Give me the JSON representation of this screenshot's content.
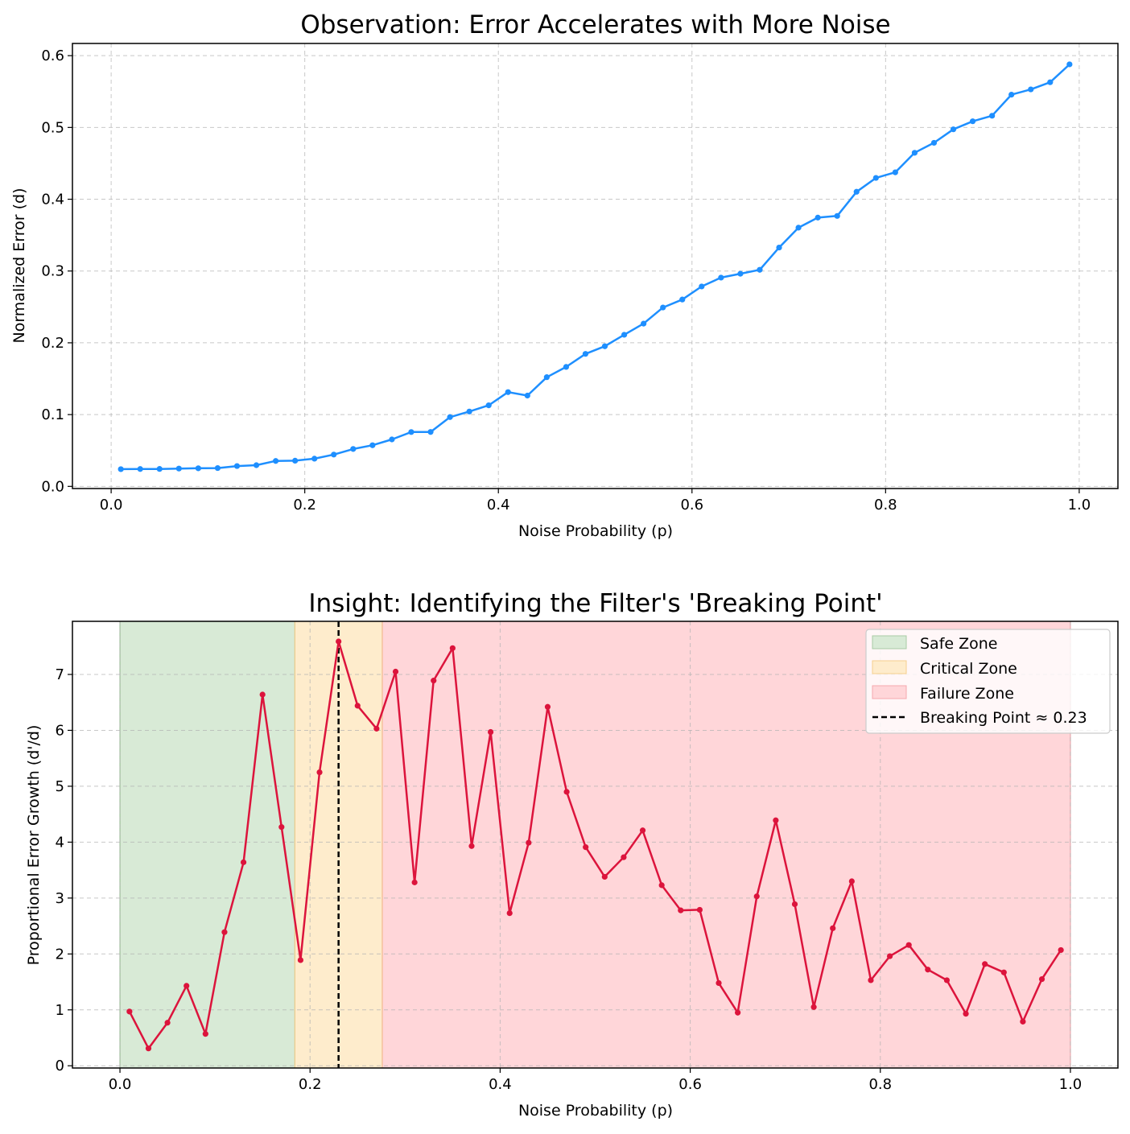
{
  "chart_data": [
    {
      "type": "line",
      "title": "Observation: Error Accelerates with More Noise",
      "xlabel": "Noise Probability (p)",
      "ylabel": "Normalized Error (d)",
      "xlim": [
        -0.04,
        1.04
      ],
      "ylim": [
        -0.003,
        0.617
      ],
      "xticks": [
        0.0,
        0.2,
        0.4,
        0.6,
        0.8,
        1.0
      ],
      "xtick_labels": [
        "0.0",
        "0.2",
        "0.4",
        "0.6",
        "0.8",
        "1.0"
      ],
      "yticks": [
        0.0,
        0.1,
        0.2,
        0.3,
        0.4,
        0.5,
        0.6
      ],
      "ytick_labels": [
        "0.0",
        "0.1",
        "0.2",
        "0.3",
        "0.4",
        "0.5",
        "0.6"
      ],
      "grid": true,
      "color": "#1e8fff",
      "series": [
        {
          "x": [
            0.01,
            0.03,
            0.05,
            0.07,
            0.09,
            0.11,
            0.13,
            0.15,
            0.17,
            0.19,
            0.21,
            0.23,
            0.25,
            0.27,
            0.29,
            0.31,
            0.33,
            0.35,
            0.37,
            0.39,
            0.41,
            0.43,
            0.45,
            0.47,
            0.49,
            0.51,
            0.53,
            0.55,
            0.57,
            0.59,
            0.61,
            0.63,
            0.65,
            0.67,
            0.69,
            0.71,
            0.73,
            0.75,
            0.77,
            0.79,
            0.81,
            0.83,
            0.85,
            0.87,
            0.89,
            0.91,
            0.93,
            0.95,
            0.97,
            0.99
          ],
          "values": [
            0.024,
            0.0242,
            0.0243,
            0.0248,
            0.0252,
            0.0255,
            0.0283,
            0.0295,
            0.0354,
            0.0358,
            0.0386,
            0.0443,
            0.0521,
            0.0573,
            0.0654,
            0.0757,
            0.0758,
            0.0965,
            0.1043,
            0.1129,
            0.1313,
            0.1265,
            0.1521,
            0.1664,
            0.1846,
            0.1952,
            0.2112,
            0.2267,
            0.2492,
            0.2603,
            0.2785,
            0.2908,
            0.2962,
            0.3017,
            0.3327,
            0.3604,
            0.3744,
            0.3767,
            0.4104,
            0.4297,
            0.4375,
            0.4647,
            0.4786,
            0.4974,
            0.5086,
            0.5163,
            0.5457,
            0.553,
            0.563,
            0.5879
          ]
        }
      ]
    },
    {
      "type": "line",
      "title": "Insight: Identifying the Filter's 'Breaking Point'",
      "xlabel": "Noise Probability (p)",
      "ylabel": "Proportional Error Growth (d'/d)",
      "xlim": [
        -0.05,
        1.05
      ],
      "ylim": [
        -0.04,
        7.95
      ],
      "xticks": [
        0.0,
        0.2,
        0.4,
        0.6,
        0.8,
        1.0
      ],
      "xtick_labels": [
        "0.0",
        "0.2",
        "0.4",
        "0.6",
        "0.8",
        "1.0"
      ],
      "yticks": [
        0,
        1,
        2,
        3,
        4,
        5,
        6,
        7
      ],
      "ytick_labels": [
        "0",
        "1",
        "2",
        "3",
        "4",
        "5",
        "6",
        "7"
      ],
      "grid": true,
      "color": "#dc143c",
      "zones": [
        {
          "name": "Safe Zone",
          "from": 0.0,
          "to": 0.184,
          "color": "#d8ead6"
        },
        {
          "name": "Critical Zone",
          "from": 0.184,
          "to": 0.276,
          "color": "#feeccc"
        },
        {
          "name": "Failure Zone",
          "from": 0.276,
          "to": 1.0,
          "color": "#ffd6d9"
        }
      ],
      "breaking_point": {
        "label": "Breaking Point ≈ 0.23",
        "x": 0.23
      },
      "legend": "top-right",
      "series": [
        {
          "x": [
            0.01,
            0.03,
            0.05,
            0.07,
            0.09,
            0.11,
            0.13,
            0.15,
            0.17,
            0.19,
            0.21,
            0.23,
            0.25,
            0.27,
            0.29,
            0.31,
            0.33,
            0.35,
            0.37,
            0.39,
            0.41,
            0.43,
            0.45,
            0.47,
            0.49,
            0.51,
            0.53,
            0.55,
            0.57,
            0.59,
            0.61,
            0.63,
            0.65,
            0.67,
            0.69,
            0.71,
            0.73,
            0.75,
            0.77,
            0.79,
            0.81,
            0.83,
            0.85,
            0.87,
            0.89,
            0.91,
            0.93,
            0.95,
            0.97,
            0.99
          ],
          "values": [
            0.97,
            0.31,
            0.77,
            1.43,
            0.57,
            2.39,
            3.64,
            6.64,
            4.27,
            1.89,
            5.25,
            7.59,
            6.44,
            6.03,
            7.05,
            3.28,
            6.89,
            7.47,
            3.93,
            5.97,
            2.73,
            3.99,
            6.42,
            4.9,
            3.91,
            3.38,
            3.73,
            4.21,
            3.23,
            2.78,
            2.79,
            1.48,
            0.95,
            3.03,
            4.39,
            2.89,
            1.05,
            2.46,
            3.3,
            1.53,
            1.96,
            2.16,
            1.72,
            1.53,
            0.93,
            1.82,
            1.67,
            0.79,
            1.55,
            2.07
          ]
        }
      ]
    }
  ]
}
